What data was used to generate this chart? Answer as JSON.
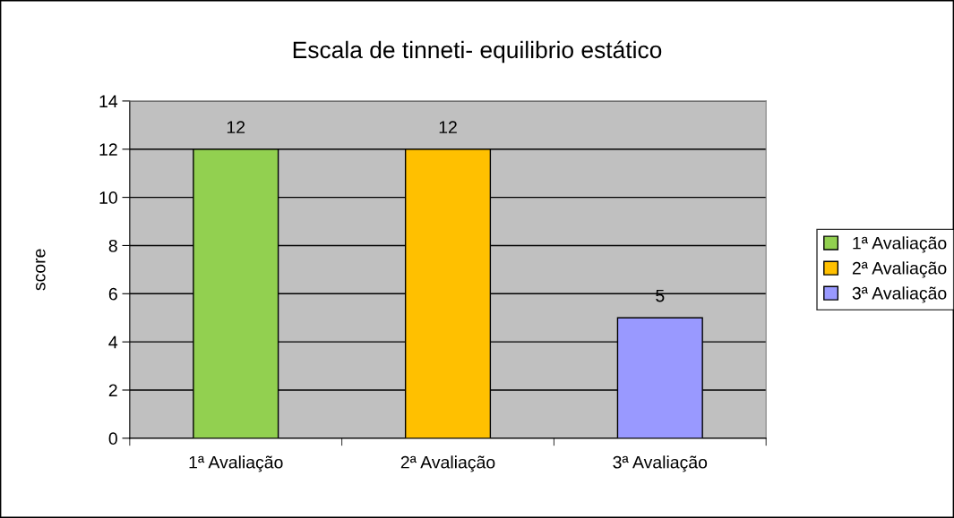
{
  "chart_data": {
    "type": "bar",
    "title": "Escala de tinneti- equilibrio estático",
    "ylabel": "score",
    "categories": [
      "1ª Avaliação",
      "2ª Avaliação",
      "3ª Avaliação"
    ],
    "series": [
      {
        "name": "1ª Avaliação",
        "color": "#92d050",
        "values": [
          12,
          null,
          null
        ]
      },
      {
        "name": "2ª Avaliação",
        "color": "#ffc000",
        "values": [
          null,
          12,
          null
        ]
      },
      {
        "name": "3ª Avaliação",
        "color": "#9999ff",
        "values": [
          null,
          null,
          5
        ]
      }
    ],
    "ylim": [
      0,
      14
    ],
    "yticks": [
      0,
      2,
      4,
      6,
      8,
      10,
      12,
      14
    ],
    "grid": "y",
    "legend": "right",
    "data_labels": true
  }
}
